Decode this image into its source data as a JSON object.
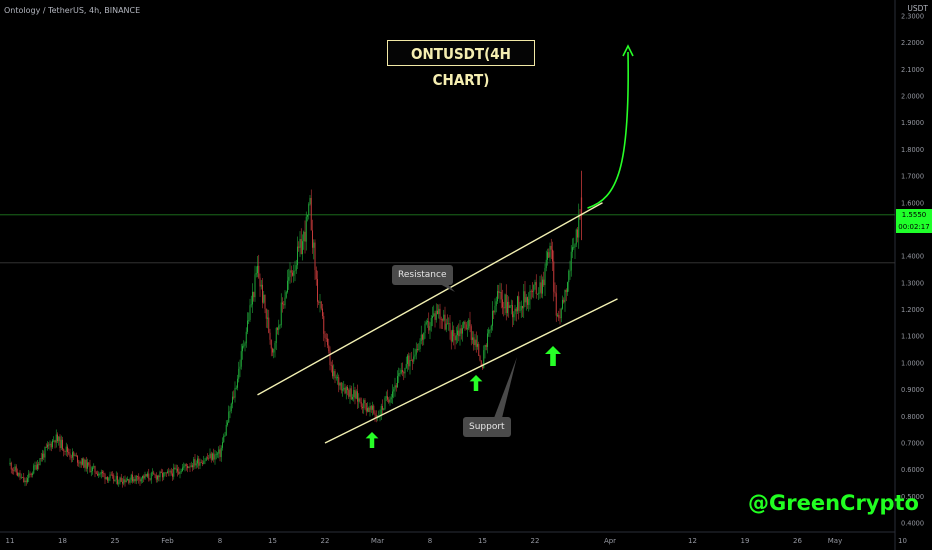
{
  "header": {
    "symbol_text": "Ontology / TetherUS, 4h, BINANCE"
  },
  "annotations": {
    "title": "ONTUSDT(4H CHART)",
    "resistance_label": "Resistance",
    "support_label": "Support",
    "watermark": "@GreenCrypto"
  },
  "colors": {
    "up_candle": "#21a83a",
    "down_candle": "#c33a3a",
    "trendline": "#f2f0b2",
    "arrow": "#27ff27",
    "last_price_line": "#1f7a1f",
    "title_border": "#f2e9a6"
  },
  "chart_data": {
    "type": "candlestick",
    "title": "ONTUSDT(4H CHART)",
    "currency": "USDT",
    "y_ticks": [
      "2.3000",
      "2.2000",
      "2.1000",
      "2.0000",
      "1.9000",
      "1.8000",
      "1.7000",
      "1.6000",
      "1.5000",
      "1.4000",
      "1.3000",
      "1.2000",
      "1.1000",
      "1.0000",
      "0.9000",
      "0.8000",
      "0.7000",
      "0.6000",
      "0.5000",
      "0.4000"
    ],
    "x_ticks": [
      "11",
      "18",
      "25",
      "Feb",
      "8",
      "15",
      "22",
      "Mar",
      "8",
      "15",
      "22",
      "Apr",
      "12",
      "19",
      "26",
      "May",
      "10"
    ],
    "ylim": [
      0.37,
      2.36
    ],
    "last_price": "1.5550",
    "last_price_countdown": "00:02:17",
    "reference_price": 1.375,
    "price_path": [
      [
        "Jan 11",
        0.62
      ],
      [
        "Jan 13",
        0.55
      ],
      [
        "Jan 15",
        0.64
      ],
      [
        "Jan 17",
        0.72
      ],
      [
        "Jan 19",
        0.66
      ],
      [
        "Jan 22",
        0.6
      ],
      [
        "Jan 25",
        0.56
      ],
      [
        "Jan 28",
        0.57
      ],
      [
        "Feb 1",
        0.58
      ],
      [
        "Feb 4",
        0.62
      ],
      [
        "Feb 8",
        0.66
      ],
      [
        "Feb 10",
        0.9
      ],
      [
        "Feb 12",
        1.2
      ],
      [
        "Feb 13",
        1.35
      ],
      [
        "Feb 15",
        1.05
      ],
      [
        "Feb 17",
        1.3
      ],
      [
        "Feb 19",
        1.45
      ],
      [
        "Feb 20",
        1.58
      ],
      [
        "Feb 21",
        1.25
      ],
      [
        "Feb 23",
        0.95
      ],
      [
        "Feb 25",
        0.9
      ],
      [
        "Feb 27",
        0.85
      ],
      [
        "Mar 1",
        0.8
      ],
      [
        "Mar 3",
        0.9
      ],
      [
        "Mar 5",
        1.0
      ],
      [
        "Mar 7",
        1.1
      ],
      [
        "Mar 9",
        1.2
      ],
      [
        "Mar 11",
        1.1
      ],
      [
        "Mar 13",
        1.15
      ],
      [
        "Mar 15",
        1.0
      ],
      [
        "Mar 17",
        1.25
      ],
      [
        "Mar 19",
        1.2
      ],
      [
        "Mar 21",
        1.25
      ],
      [
        "Mar 23",
        1.3
      ],
      [
        "Mar 24",
        1.45
      ],
      [
        "Mar 25",
        1.15
      ],
      [
        "Mar 27",
        1.4
      ],
      [
        "Mar 28",
        1.56
      ]
    ],
    "resistance_line": {
      "start": [
        "Feb 13",
        0.88
      ],
      "end": [
        "Mar 31",
        1.6
      ]
    },
    "support_line": {
      "start": [
        "Feb 22",
        0.7
      ],
      "end": [
        "Apr 2",
        1.24
      ]
    },
    "projection": {
      "from": [
        "Mar 29",
        1.58
      ],
      "to": [
        "Apr 3",
        2.18
      ]
    },
    "grid": false
  }
}
